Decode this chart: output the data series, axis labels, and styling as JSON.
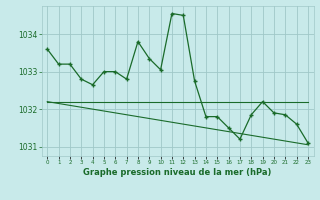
{
  "title": "Graphe pression niveau de la mer (hPa)",
  "bg_color": "#c8eaea",
  "grid_color": "#a0c8c8",
  "line_color": "#1a6b2a",
  "x_values": [
    0,
    1,
    2,
    3,
    4,
    5,
    6,
    7,
    8,
    9,
    10,
    11,
    12,
    13,
    14,
    15,
    16,
    17,
    18,
    19,
    20,
    21,
    22,
    23
  ],
  "y_main": [
    1033.6,
    1033.2,
    1033.2,
    1032.8,
    1032.65,
    1033.0,
    1033.0,
    1032.8,
    1033.8,
    1033.35,
    1033.05,
    1034.55,
    1034.5,
    1032.75,
    1031.8,
    1031.8,
    1031.5,
    1031.2,
    1031.85,
    1032.2,
    1031.9,
    1031.85,
    1031.6,
    1031.1
  ],
  "y_trend_flat": [
    1032.2,
    1032.2,
    1032.2,
    1032.2,
    1032.2,
    1032.2,
    1032.2,
    1032.2,
    1032.2,
    1032.2,
    1032.2,
    1032.2,
    1032.2,
    1032.2,
    1032.2,
    1032.2,
    1032.2,
    1032.2,
    1032.2,
    1032.2,
    1032.2,
    1032.2,
    1032.2,
    1032.2
  ],
  "y_trend_slope": [
    1032.2,
    1032.15,
    1032.1,
    1032.05,
    1032.0,
    1031.95,
    1031.9,
    1031.85,
    1031.8,
    1031.75,
    1031.7,
    1031.65,
    1031.6,
    1031.55,
    1031.5,
    1031.45,
    1031.4,
    1031.35,
    1031.3,
    1031.25,
    1031.2,
    1031.15,
    1031.1,
    1031.05
  ],
  "ylim": [
    1030.75,
    1034.75
  ],
  "yticks": [
    1031,
    1032,
    1033,
    1034
  ],
  "xlim": [
    -0.5,
    23.5
  ],
  "figsize": [
    3.2,
    2.0
  ],
  "dpi": 100
}
